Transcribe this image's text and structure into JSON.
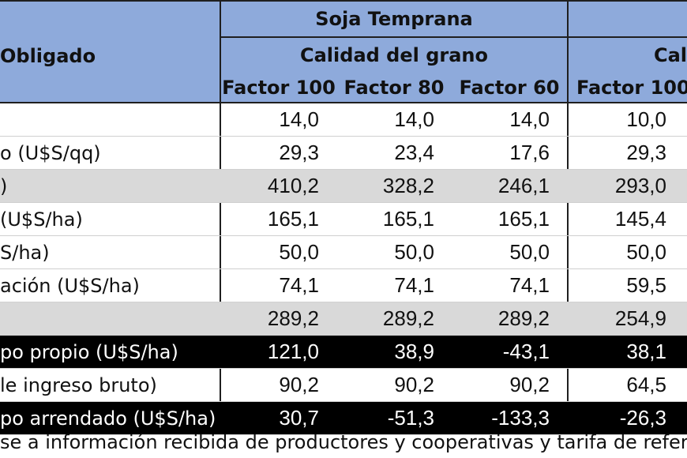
{
  "header": {
    "group1_title": "Soja Temprana",
    "group1_subtitle": "Calidad del grano",
    "group2_subtitle": "Cal",
    "row_label_header": "Obligado",
    "factors": [
      "Factor 100",
      "Factor 80",
      "Factor 60",
      "Factor 100"
    ]
  },
  "rows": [
    {
      "label": "",
      "values": [
        "14,0",
        "14,0",
        "14,0",
        "10,0"
      ],
      "style": "white"
    },
    {
      "label": "o (U$S/qq)",
      "values": [
        "29,3",
        "23,4",
        "17,6",
        "29,3"
      ],
      "style": "white"
    },
    {
      "label": ")",
      "values": [
        "410,2",
        "328,2",
        "246,1",
        "293,0"
      ],
      "style": "grey"
    },
    {
      "label": "(U$S/ha)",
      "values": [
        "165,1",
        "165,1",
        "165,1",
        "145,4"
      ],
      "style": "white"
    },
    {
      "label": "S/ha)",
      "values": [
        "50,0",
        "50,0",
        "50,0",
        "50,0"
      ],
      "style": "white"
    },
    {
      "label": "ación (U$S/ha)",
      "values": [
        "74,1",
        "74,1",
        "74,1",
        "59,5"
      ],
      "style": "white"
    },
    {
      "label": "",
      "values": [
        "289,2",
        "289,2",
        "289,2",
        "254,9"
      ],
      "style": "grey"
    },
    {
      "label": "po propio (U$S/ha)",
      "values": [
        "121,0",
        "38,9",
        "-43,1",
        "38,1"
      ],
      "style": "dark"
    },
    {
      "label": "le ingreso bruto)",
      "values": [
        "90,2",
        "90,2",
        "90,2",
        "64,5"
      ],
      "style": "white"
    },
    {
      "label": "po arrendado (U$S/ha)",
      "values": [
        "30,7",
        "-51,3",
        "-133,3",
        "-26,3"
      ],
      "style": "dark"
    }
  ],
  "footer": {
    "note": "se a información recibida de productores y cooperativas y tarifa de refere"
  }
}
